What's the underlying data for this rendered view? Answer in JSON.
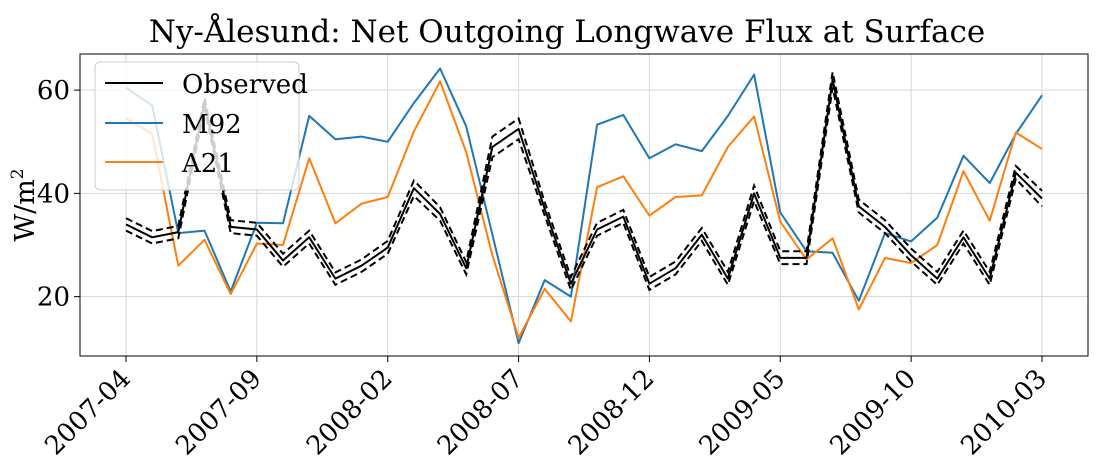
{
  "chart_data": {
    "type": "line",
    "title": "Ny-Ålesund: Net Outgoing Longwave Flux at Surface",
    "xlabel": "",
    "ylabel": "W/m²",
    "ylabel_main": "W/m",
    "ylabel_sup": "2",
    "x_ticks": [
      "2007-04",
      "2007-09",
      "2008-02",
      "2008-07",
      "2008-12",
      "2009-05",
      "2009-10",
      "2010-03"
    ],
    "x": [
      "2007-04",
      "2007-05",
      "2007-06",
      "2007-07",
      "2007-08",
      "2007-09",
      "2007-10",
      "2007-11",
      "2007-12",
      "2008-01",
      "2008-02",
      "2008-03",
      "2008-04",
      "2008-05",
      "2008-06",
      "2008-07",
      "2008-08",
      "2008-09",
      "2008-10",
      "2008-11",
      "2008-12",
      "2009-01",
      "2009-02",
      "2009-03",
      "2009-04",
      "2009-05",
      "2009-06",
      "2009-07",
      "2009-08",
      "2009-09",
      "2009-10",
      "2009-11",
      "2009-12",
      "2010-01",
      "2010-02",
      "2010-03"
    ],
    "ylim": [
      8.5,
      67
    ],
    "y_ticks": [
      20,
      40,
      60
    ],
    "grid": true,
    "legend_position": "top-left",
    "series": [
      {
        "name": "Observed",
        "color": "#000000",
        "values": [
          34.0,
          31.5,
          32.5,
          57.5,
          33.5,
          33.0,
          27.0,
          31.5,
          23.5,
          26.0,
          29.5,
          41.0,
          36.0,
          25.5,
          49.0,
          52.5,
          37.0,
          22.5,
          33.0,
          35.5,
          22.5,
          25.5,
          32.0,
          23.5,
          40.0,
          27.5,
          27.5,
          62.0,
          37.5,
          33.5,
          28.0,
          23.5,
          31.5,
          23.5,
          44.0,
          39.0
        ],
        "upper": [
          35.2,
          32.7,
          33.7,
          58.5,
          34.8,
          34.3,
          28.3,
          32.8,
          24.7,
          27.2,
          30.8,
          42.5,
          37.3,
          26.7,
          51.0,
          54.5,
          38.3,
          23.8,
          34.3,
          36.8,
          23.8,
          26.8,
          33.3,
          24.8,
          41.5,
          28.8,
          28.8,
          63.5,
          38.8,
          34.8,
          29.3,
          24.8,
          32.8,
          24.8,
          45.3,
          40.5
        ],
        "lower": [
          32.8,
          30.3,
          31.3,
          56.5,
          32.3,
          31.8,
          25.8,
          30.3,
          22.3,
          24.8,
          28.3,
          39.5,
          34.7,
          24.3,
          47.0,
          50.5,
          35.7,
          21.3,
          31.8,
          34.3,
          21.3,
          24.3,
          30.8,
          22.3,
          38.5,
          26.3,
          26.3,
          60.5,
          36.3,
          32.3,
          26.8,
          22.3,
          30.3,
          22.3,
          42.8,
          37.5
        ]
      },
      {
        "name": "M92",
        "color": "#1f77b4",
        "values": [
          60.5,
          57.0,
          32.3,
          32.8,
          21.0,
          34.3,
          34.2,
          55.0,
          50.5,
          51.0,
          50.0,
          57.5,
          64.2,
          53.0,
          32.0,
          11.0,
          23.2,
          20.0,
          53.3,
          55.2,
          46.8,
          49.5,
          48.2,
          55.0,
          63.0,
          36.3,
          28.8,
          28.5,
          19.2,
          32.3,
          30.7,
          35.3,
          47.3,
          42.0,
          51.5,
          59.0
        ]
      },
      {
        "name": "A21",
        "color": "#ff7f0e",
        "values": [
          54.5,
          51.5,
          26.0,
          31.0,
          20.5,
          30.3,
          30.0,
          46.8,
          34.2,
          38.0,
          39.3,
          52.0,
          61.7,
          48.0,
          28.0,
          12.0,
          21.5,
          15.2,
          41.2,
          43.3,
          35.7,
          39.3,
          39.6,
          49.0,
          54.9,
          34.5,
          27.2,
          31.3,
          17.5,
          27.5,
          26.5,
          30.0,
          44.3,
          34.7,
          51.8,
          48.6
        ]
      }
    ]
  }
}
